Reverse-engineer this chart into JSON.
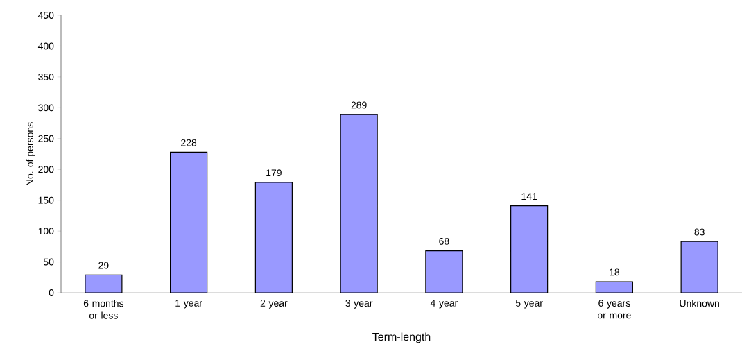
{
  "chart_data": {
    "type": "bar",
    "xlabel": "Term-length",
    "ylabel": "No. of persons",
    "categories": [
      "6 months or less",
      "1 year",
      "2 year",
      "3 year",
      "4 year",
      "5 year",
      "6 years or more",
      "Unknown"
    ],
    "values": [
      29,
      228,
      179,
      289,
      68,
      141,
      18,
      83
    ],
    "color": "#9999ff",
    "ylim": [
      0,
      450
    ],
    "yticks": [
      0,
      50,
      100,
      150,
      200,
      250,
      300,
      350,
      400,
      450
    ],
    "data_labels": true,
    "grid": false
  }
}
